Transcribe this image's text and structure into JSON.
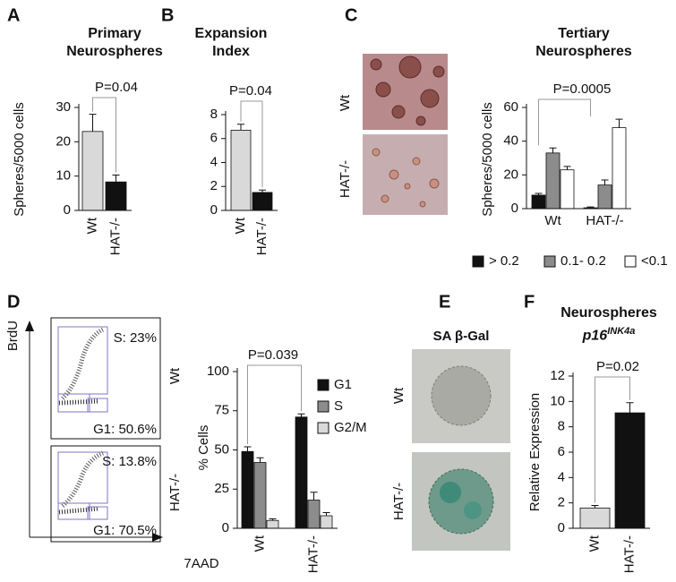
{
  "chart_data": [
    {
      "type": "bar",
      "panel": "A",
      "title": "Primary Neurospheres",
      "ylabel": "Spheres/5000 cells",
      "categories": [
        "Wt",
        "HAT-/-"
      ],
      "values": [
        23,
        8.3
      ],
      "errors": [
        5,
        2
      ],
      "colors": [
        "#d9d9d9",
        "#111111"
      ],
      "ylim": [
        0,
        30
      ],
      "yticks": [
        0,
        10,
        20,
        30
      ],
      "annotation": "P=0.04"
    },
    {
      "type": "bar",
      "panel": "B",
      "title": "Expansion Index",
      "categories": [
        "Wt",
        "HAT-/-"
      ],
      "values": [
        6.7,
        1.5
      ],
      "errors": [
        0.5,
        0.2
      ],
      "colors": [
        "#d9d9d9",
        "#111111"
      ],
      "ylim": [
        0,
        8
      ],
      "yticks": [
        0,
        2,
        4,
        6,
        8
      ],
      "annotation": "P=0.04"
    },
    {
      "type": "bar",
      "panel": "C",
      "title": "Tertiary Neurospheres",
      "ylabel": "Spheres/5000 cells",
      "categories": [
        "Wt",
        "HAT-/-"
      ],
      "series": [
        {
          "name": "> 0.2",
          "color": "#111111",
          "values": [
            8,
            0.5
          ],
          "errors": [
            1,
            0.5
          ]
        },
        {
          "name": "0.1- 0.2",
          "color": "#8c8c8c",
          "values": [
            33,
            14
          ],
          "errors": [
            3,
            3
          ]
        },
        {
          "name": "<0.1",
          "color": "#ffffff",
          "values": [
            23,
            48
          ],
          "errors": [
            2,
            5
          ]
        }
      ],
      "ylim": [
        0,
        60
      ],
      "yticks": [
        0,
        20,
        40,
        60
      ],
      "annotation": "P=0.0005",
      "legend": "bottom"
    },
    {
      "type": "bar",
      "ylabel": "% Cells",
      "categories": [
        "Wt",
        "HAT-/-"
      ],
      "series": [
        {
          "name": "G1",
          "color": "#111111",
          "values": [
            49,
            71
          ],
          "errors": [
            3,
            2
          ]
        },
        {
          "name": "S",
          "color": "#8c8c8c",
          "values": [
            42,
            18
          ],
          "errors": [
            3,
            5
          ]
        },
        {
          "name": "G2/M",
          "color": "#d9d9d9",
          "values": [
            5,
            8
          ],
          "errors": [
            1,
            2
          ]
        }
      ],
      "ylim": [
        0,
        100
      ],
      "yticks": [
        0,
        25,
        50,
        75,
        100
      ],
      "annotation": "P=0.039",
      "legend": "right"
    },
    {
      "type": "bar",
      "panel": "F",
      "title": "Neurospheres",
      "subtitle": "p16",
      "subtitle_superscript": "INK4a",
      "ylabel": "Relative Expression",
      "categories": [
        "Wt",
        "HAT-/-"
      ],
      "values": [
        1.6,
        9.1
      ],
      "errors": [
        0.2,
        0.8
      ],
      "colors": [
        "#d9d9d9",
        "#111111"
      ],
      "ylim": [
        0,
        12
      ],
      "yticks": [
        0,
        2,
        4,
        6,
        8,
        10,
        12
      ],
      "annotation": "P=0.02"
    }
  ],
  "micrographs_c": {
    "rows": [
      "Wt",
      "HAT-/-"
    ]
  },
  "flow_d": {
    "panel": "D",
    "y_axis": "BrdU",
    "x_axis": "7AAD",
    "plots": [
      {
        "row": "Wt",
        "s_gate": "S: 23%",
        "g1_gate": "G1: 50.6%"
      },
      {
        "row": "HAT-/-",
        "s_gate": "S: 13.8%",
        "g1_gate": "G1: 70.5%"
      }
    ]
  },
  "senescence_e": {
    "panel": "E",
    "title": "SA β-Gal",
    "rows": [
      "Wt",
      "HAT-/-"
    ]
  }
}
